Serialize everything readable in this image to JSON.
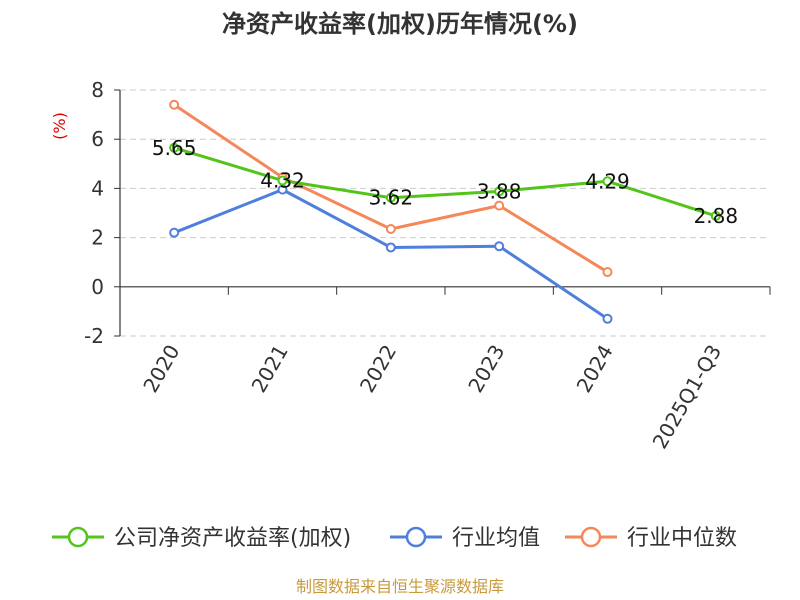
{
  "chart_data": {
    "type": "line",
    "title": "净资产收益率(加权)历年情况(%)",
    "ylabel": "(%)",
    "categories": [
      "2020",
      "2021",
      "2022",
      "2023",
      "2024",
      "2025Q1-Q3"
    ],
    "ylim": [
      -2,
      8
    ],
    "yticks": [
      "8",
      "6",
      "4",
      "2",
      "0",
      "-2"
    ],
    "series": [
      {
        "name": "公司净资产收益率(加权)",
        "color": "#52c41a",
        "values": [
          5.65,
          4.32,
          3.62,
          3.88,
          4.29,
          2.88
        ],
        "labels": [
          "5.65",
          "4.32",
          "3.62",
          "3.88",
          "4.29",
          "2.88"
        ]
      },
      {
        "name": "行业均值",
        "color": "#4f7fdc",
        "values": [
          2.2,
          3.95,
          1.6,
          1.65,
          -1.3,
          null
        ]
      },
      {
        "name": "行业中位数",
        "color": "#f5885a",
        "values": [
          7.4,
          4.45,
          2.35,
          3.3,
          0.6,
          null
        ]
      }
    ],
    "source": "制图数据来自恒生聚源数据库"
  }
}
